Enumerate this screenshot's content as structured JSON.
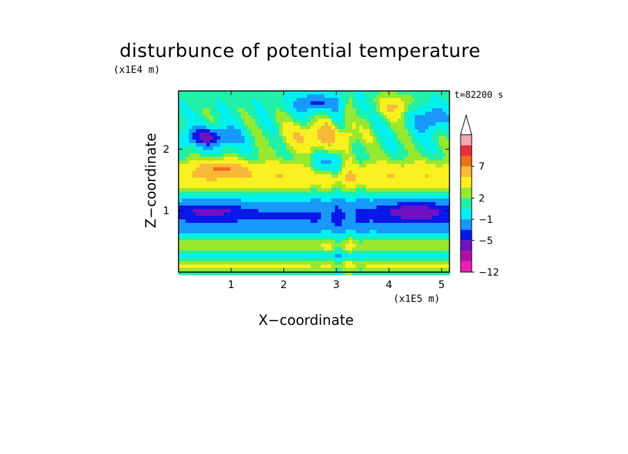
{
  "chart_data": {
    "type": "heatmap",
    "title": "disturbunce of potential temperature",
    "xlabel": "X−coordinate",
    "ylabel": "Z−coordinate",
    "x_unit": "(x1E5 m)",
    "y_unit": "(x1E4 m)",
    "time_label": "t=82200 s",
    "xlim": [
      0,
      5.15
    ],
    "ylim": [
      0,
      2.95
    ],
    "x_ticks": [
      "1",
      "2",
      "3",
      "4",
      "5"
    ],
    "y_ticks": [
      "1",
      "2"
    ],
    "colorbar": {
      "tick_labels": [
        "7",
        "2",
        "−1",
        "−5",
        "−12"
      ],
      "colors": [
        "#f0a8b8",
        "#e8303a",
        "#f07018",
        "#f8b838",
        "#f8f020",
        "#98e830",
        "#20f0a8",
        "#00f0f0",
        "#1898f8",
        "#0818e8",
        "#7010c0",
        "#b010a8",
        "#e820b8"
      ],
      "extend": "max"
    }
  }
}
